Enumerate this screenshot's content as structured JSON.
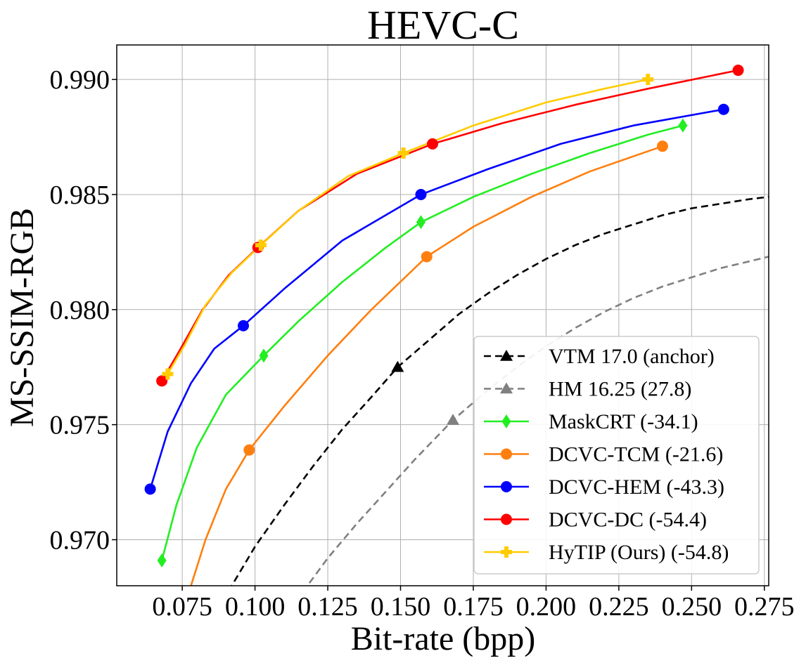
{
  "chart_data": {
    "type": "line",
    "title": "HEVC-C",
    "xlabel": "Bit-rate (bpp)",
    "ylabel": "MS-SSIM-RGB",
    "xlim": [
      0.0525,
      0.2765
    ],
    "ylim": [
      0.968,
      0.9915
    ],
    "xticks": [
      0.075,
      0.1,
      0.125,
      0.15,
      0.175,
      0.2,
      0.225,
      0.25,
      0.275
    ],
    "xtick_labels": [
      "0.075",
      "0.100",
      "0.125",
      "0.150",
      "0.175",
      "0.200",
      "0.225",
      "0.250",
      "0.275"
    ],
    "yticks": [
      0.97,
      0.975,
      0.98,
      0.985,
      0.99
    ],
    "ytick_labels": [
      "0.970",
      "0.975",
      "0.980",
      "0.985",
      "0.990"
    ],
    "grid": true,
    "legend_position": "lower-right",
    "series": [
      {
        "name": "VTM 17.0 (anchor)",
        "color": "#000000",
        "dashed": true,
        "marker": "triangle",
        "x": [
          0.085,
          0.092,
          0.1,
          0.11,
          0.12,
          0.13,
          0.14,
          0.149,
          0.16,
          0.17,
          0.18,
          0.19,
          0.2,
          0.21,
          0.22,
          0.23,
          0.24,
          0.25,
          0.26,
          0.27,
          0.2765
        ],
        "y": [
          0.9665,
          0.968,
          0.9697,
          0.9715,
          0.9732,
          0.9748,
          0.9762,
          0.9775,
          0.9787,
          0.9798,
          0.9807,
          0.9815,
          0.9822,
          0.9828,
          0.9833,
          0.9837,
          0.9841,
          0.9844,
          0.9846,
          0.9848,
          0.9849
        ],
        "marker_x": [
          0.149
        ],
        "marker_y": [
          0.9775
        ]
      },
      {
        "name": "HM 16.25 (27.8)",
        "color": "#808080",
        "dashed": true,
        "marker": "triangle",
        "x": [
          0.11,
          0.118,
          0.125,
          0.135,
          0.145,
          0.155,
          0.168,
          0.18,
          0.19,
          0.2,
          0.21,
          0.22,
          0.23,
          0.24,
          0.25,
          0.26,
          0.27,
          0.2765
        ],
        "y": [
          0.9665,
          0.968,
          0.9692,
          0.9707,
          0.9721,
          0.9735,
          0.9752,
          0.9765,
          0.9775,
          0.9784,
          0.9792,
          0.9799,
          0.9805,
          0.981,
          0.9814,
          0.9818,
          0.9821,
          0.9823
        ],
        "marker_x": [
          0.168
        ],
        "marker_y": [
          0.9752
        ]
      },
      {
        "name": "MaskCRT (-34.1)",
        "color": "#22ee22",
        "dashed": false,
        "marker": "diamond",
        "x": [
          0.068,
          0.073,
          0.08,
          0.09,
          0.103,
          0.115,
          0.13,
          0.145,
          0.157,
          0.175,
          0.195,
          0.215,
          0.235,
          0.247
        ],
        "y": [
          0.9691,
          0.9715,
          0.974,
          0.9763,
          0.978,
          0.9795,
          0.9812,
          0.9827,
          0.9838,
          0.9849,
          0.9859,
          0.9868,
          0.9876,
          0.988
        ],
        "marker_x": [
          0.068,
          0.103,
          0.157,
          0.247
        ],
        "marker_y": [
          0.9691,
          0.978,
          0.9838,
          0.988
        ]
      },
      {
        "name": "DCVC-TCM (-21.6)",
        "color": "#ff7f0e",
        "dashed": false,
        "marker": "circle",
        "x": [
          0.078,
          0.083,
          0.09,
          0.098,
          0.11,
          0.125,
          0.14,
          0.159,
          0.175,
          0.195,
          0.215,
          0.24
        ],
        "y": [
          0.968,
          0.97,
          0.9722,
          0.9739,
          0.9758,
          0.978,
          0.98,
          0.9823,
          0.9836,
          0.9849,
          0.986,
          0.9871
        ],
        "marker_x": [
          0.098,
          0.159,
          0.24
        ],
        "marker_y": [
          0.9739,
          0.9823,
          0.9871
        ]
      },
      {
        "name": "DCVC-HEM (-43.3)",
        "color": "#0000ff",
        "dashed": false,
        "marker": "circle",
        "x": [
          0.064,
          0.07,
          0.078,
          0.086,
          0.096,
          0.11,
          0.13,
          0.157,
          0.18,
          0.205,
          0.23,
          0.261
        ],
        "y": [
          0.9722,
          0.9747,
          0.9768,
          0.9783,
          0.9793,
          0.9809,
          0.983,
          0.985,
          0.9861,
          0.9872,
          0.988,
          0.9887
        ],
        "marker_x": [
          0.064,
          0.096,
          0.157,
          0.261
        ],
        "marker_y": [
          0.9722,
          0.9793,
          0.985,
          0.9887
        ]
      },
      {
        "name": "DCVC-DC (-54.4)",
        "color": "#ff0000",
        "dashed": false,
        "marker": "circle",
        "x": [
          0.068,
          0.074,
          0.082,
          0.091,
          0.101,
          0.115,
          0.135,
          0.161,
          0.185,
          0.21,
          0.235,
          0.266
        ],
        "y": [
          0.9769,
          0.9782,
          0.98,
          0.9815,
          0.9827,
          0.9843,
          0.9859,
          0.9872,
          0.9881,
          0.9889,
          0.9896,
          0.9904
        ],
        "marker_x": [
          0.068,
          0.101,
          0.161,
          0.266
        ],
        "marker_y": [
          0.9769,
          0.9827,
          0.9872,
          0.9904
        ]
      },
      {
        "name": "HyTIP (Ours) (-54.8)",
        "color": "#ffcc00",
        "dashed": false,
        "marker": "plus",
        "x": [
          0.07,
          0.076,
          0.083,
          0.092,
          0.102,
          0.115,
          0.132,
          0.151,
          0.175,
          0.2,
          0.22,
          0.235
        ],
        "y": [
          0.9772,
          0.9785,
          0.9802,
          0.9816,
          0.9828,
          0.9843,
          0.9858,
          0.9868,
          0.988,
          0.989,
          0.9896,
          0.99
        ],
        "marker_x": [
          0.07,
          0.102,
          0.151,
          0.235
        ],
        "marker_y": [
          0.9772,
          0.9828,
          0.9868,
          0.99
        ]
      }
    ]
  }
}
